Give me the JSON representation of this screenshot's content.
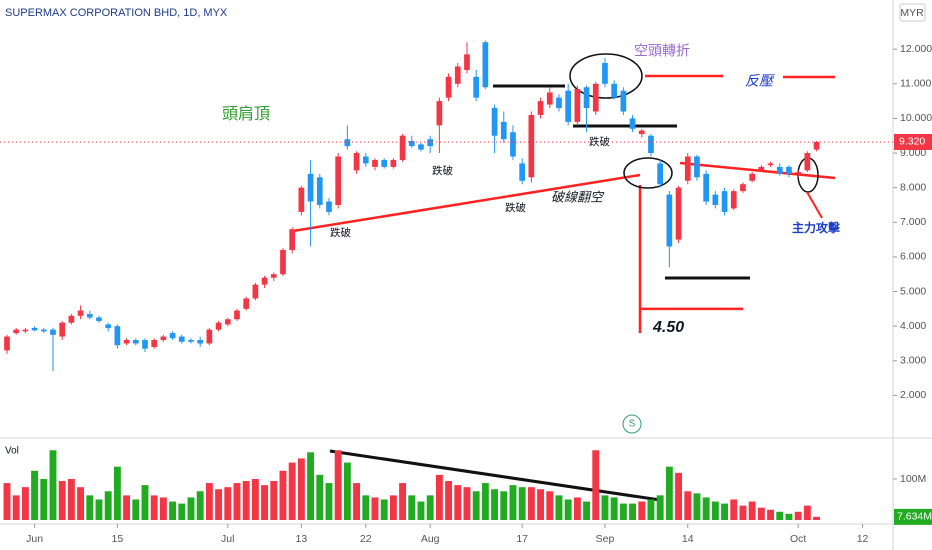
{
  "chart_data": {
    "type": "candlestick",
    "title": "SUPERMAX CORPORATION BHD, 1D, MYX",
    "currency": "MYR",
    "volume_label": "Vol",
    "up_color": "#f23645",
    "down_color": "#2196f3",
    "volume_up_color": "#f23645",
    "volume_down_color": "#22ab22",
    "open": [
      3.3,
      3.8,
      3.85,
      3.95,
      3.9,
      3.9,
      3.7,
      4.1,
      4.3,
      4.35,
      4.25,
      4.05,
      4.0,
      3.5,
      3.6,
      3.6,
      3.4,
      3.6,
      3.8,
      3.7,
      3.6,
      3.6,
      3.5,
      3.9,
      4.05,
      4.2,
      4.5,
      4.8,
      5.2,
      5.4,
      5.5,
      6.2,
      7.3,
      8.4,
      8.3,
      7.6,
      7.5,
      9.4,
      8.5,
      8.9,
      8.6,
      8.8,
      8.6,
      8.8,
      9.35,
      9.25,
      9.4,
      9.8,
      10.6,
      11.0,
      11.4,
      11.2,
      12.2,
      10.3,
      9.9,
      9.6,
      8.7,
      8.3,
      10.1,
      10.4,
      10.6,
      10.8,
      9.9,
      10.9,
      10.2,
      11.6,
      11.0,
      10.8,
      10.0,
      9.55,
      9.5,
      8.7,
      7.8,
      6.5,
      8.2,
      8.9,
      8.4,
      7.8,
      7.9,
      7.4,
      7.9,
      8.2,
      8.5,
      8.65,
      8.6,
      8.6,
      8.4,
      8.5,
      9.1
    ],
    "high": [
      3.75,
      3.95,
      3.95,
      4.0,
      3.95,
      3.95,
      4.15,
      4.35,
      4.6,
      4.45,
      4.3,
      4.1,
      4.05,
      3.65,
      3.65,
      3.65,
      3.65,
      3.75,
      3.85,
      3.75,
      3.65,
      3.7,
      3.95,
      4.15,
      4.25,
      4.5,
      4.85,
      5.25,
      5.45,
      5.55,
      6.25,
      6.85,
      8.05,
      8.8,
      8.4,
      7.7,
      9.0,
      9.8,
      9.05,
      9.0,
      8.85,
      8.85,
      8.85,
      9.55,
      9.5,
      9.3,
      9.5,
      10.6,
      11.3,
      11.6,
      12.2,
      11.4,
      12.25,
      10.4,
      10.2,
      9.8,
      8.85,
      10.2,
      10.6,
      10.9,
      10.7,
      11.0,
      10.95,
      10.95,
      11.05,
      11.75,
      11.1,
      10.9,
      10.1,
      9.7,
      9.55,
      8.8,
      7.9,
      8.05,
      9.0,
      8.95,
      8.5,
      7.9,
      8.0,
      7.95,
      8.15,
      8.45,
      8.65,
      8.75,
      8.7,
      8.65,
      8.5,
      9.05,
      9.35
    ],
    "low": [
      3.2,
      3.75,
      3.8,
      3.85,
      3.8,
      2.7,
      3.6,
      4.05,
      4.2,
      4.2,
      4.1,
      3.85,
      3.35,
      3.45,
      3.45,
      3.25,
      3.35,
      3.55,
      3.6,
      3.5,
      3.5,
      3.4,
      3.45,
      3.85,
      4.0,
      4.15,
      4.45,
      4.75,
      5.1,
      5.3,
      5.45,
      6.1,
      7.2,
      6.3,
      7.4,
      7.2,
      7.4,
      9.1,
      8.4,
      8.6,
      8.5,
      8.55,
      8.55,
      8.75,
      9.15,
      9.05,
      9.0,
      9.0,
      10.5,
      10.9,
      11.3,
      10.5,
      10.85,
      9.0,
      9.3,
      8.8,
      8.1,
      8.15,
      10.0,
      10.3,
      10.2,
      9.8,
      9.8,
      9.6,
      10.1,
      10.9,
      10.55,
      10.1,
      9.6,
      9.45,
      8.9,
      8.0,
      5.7,
      6.4,
      8.1,
      8.2,
      7.5,
      7.4,
      7.2,
      7.35,
      7.85,
      8.15,
      8.45,
      8.6,
      8.35,
      8.3,
      8.3,
      8.45,
      9.05
    ],
    "close": [
      3.7,
      3.9,
      3.9,
      3.88,
      3.85,
      3.75,
      4.1,
      4.3,
      4.45,
      4.25,
      4.15,
      3.95,
      3.45,
      3.6,
      3.5,
      3.35,
      3.6,
      3.7,
      3.65,
      3.55,
      3.55,
      3.5,
      3.9,
      4.1,
      4.2,
      4.45,
      4.8,
      5.2,
      5.4,
      5.5,
      6.2,
      6.8,
      8.0,
      7.6,
      7.5,
      7.3,
      8.9,
      9.2,
      9.0,
      8.7,
      8.8,
      8.6,
      8.8,
      9.5,
      9.2,
      9.1,
      9.2,
      10.5,
      11.2,
      11.5,
      11.85,
      10.6,
      10.9,
      9.5,
      9.4,
      8.9,
      8.2,
      10.1,
      10.5,
      10.75,
      10.3,
      9.9,
      10.85,
      10.3,
      11.0,
      11.0,
      10.6,
      10.2,
      9.7,
      9.65,
      9.0,
      8.1,
      6.3,
      8.0,
      8.9,
      8.3,
      7.6,
      7.5,
      7.3,
      7.9,
      8.1,
      8.4,
      8.6,
      8.7,
      8.4,
      8.4,
      8.45,
      9.0,
      9.32
    ],
    "volume": [
      90,
      60,
      80,
      120,
      100,
      170,
      95,
      100,
      80,
      60,
      50,
      70,
      130,
      60,
      50,
      85,
      60,
      55,
      45,
      40,
      55,
      70,
      90,
      75,
      80,
      90,
      95,
      100,
      85,
      95,
      120,
      140,
      150,
      165,
      110,
      90,
      170,
      140,
      90,
      60,
      55,
      50,
      60,
      90,
      60,
      45,
      60,
      110,
      95,
      85,
      80,
      70,
      90,
      75,
      70,
      85,
      80,
      80,
      75,
      70,
      60,
      50,
      55,
      45,
      170,
      60,
      55,
      40,
      40,
      45,
      50,
      60,
      130,
      115,
      70,
      65,
      55,
      45,
      40,
      50,
      35,
      45,
      30,
      25,
      20,
      15,
      20,
      35,
      7.634
    ],
    "xlim": [
      -0.76,
      96.31
    ],
    "xticks": [
      {
        "value": 3,
        "label": "Jun"
      },
      {
        "value": 12,
        "label": "15"
      },
      {
        "value": 24,
        "label": "Jul"
      },
      {
        "value": 32,
        "label": "13"
      },
      {
        "value": 39,
        "label": "22"
      },
      {
        "value": 46,
        "label": "Aug"
      },
      {
        "value": 56,
        "label": "17"
      },
      {
        "value": 65,
        "label": "Sep"
      },
      {
        "value": 74,
        "label": "14"
      },
      {
        "value": 86,
        "label": "Oct"
      },
      {
        "value": 93,
        "label": "12"
      }
    ],
    "ylim": [
      0.77,
      13.42
    ],
    "yticks": [
      {
        "value": 2,
        "label": "2.000"
      },
      {
        "value": 3,
        "label": "3.000"
      },
      {
        "value": 4,
        "label": "4.000"
      },
      {
        "value": 5,
        "label": "5.000"
      },
      {
        "value": 6,
        "label": "6.000"
      },
      {
        "value": 7,
        "label": "7.000"
      },
      {
        "value": 8,
        "label": "8.000"
      },
      {
        "value": 9,
        "label": "9.000"
      },
      {
        "value": 10,
        "label": "10.000"
      },
      {
        "value": 11,
        "label": "11.000"
      },
      {
        "value": 12,
        "label": "12.000"
      }
    ],
    "vlim": [
      0,
      195
    ],
    "vticks": [
      {
        "value": 100,
        "label": "100M"
      }
    ],
    "last_price": {
      "value": 9.32,
      "label": "9.320"
    },
    "last_volume": {
      "value": 7.634,
      "label": "7.634M"
    },
    "target": {
      "value": 4.5,
      "label": "4.50"
    },
    "annotations": [
      "頭肩頂",
      "空頭轉折",
      "反壓",
      "跌破",
      "跌破",
      "跌破",
      "跌破",
      "破線翻空",
      "主力攻擊"
    ],
    "marker": "S"
  }
}
